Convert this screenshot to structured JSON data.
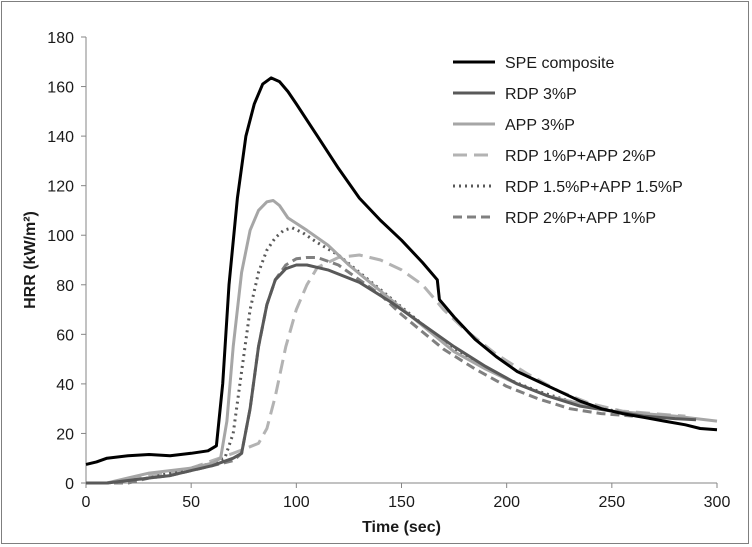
{
  "chart_data": {
    "type": "line",
    "title": "",
    "xlabel": "Time (sec)",
    "ylabel": "HRR (kW/m²)",
    "xlim": [
      0,
      300
    ],
    "ylim": [
      0,
      180
    ],
    "x_ticks": [
      0,
      50,
      100,
      150,
      200,
      250,
      300
    ],
    "y_ticks": [
      0,
      20,
      40,
      60,
      80,
      100,
      120,
      140,
      160,
      180
    ],
    "grid": false,
    "legend_position": "top-right",
    "series": [
      {
        "name": "SPE composite",
        "color": "#000000",
        "width": 3,
        "dash": "",
        "points": [
          [
            0,
            7.5
          ],
          [
            5,
            8.5
          ],
          [
            10,
            10
          ],
          [
            20,
            11
          ],
          [
            30,
            11.5
          ],
          [
            40,
            11
          ],
          [
            50,
            12
          ],
          [
            58,
            13
          ],
          [
            62,
            15
          ],
          [
            65,
            40
          ],
          [
            68,
            80
          ],
          [
            72,
            115
          ],
          [
            76,
            140
          ],
          [
            80,
            153
          ],
          [
            84,
            161
          ],
          [
            88,
            163.5
          ],
          [
            92,
            162
          ],
          [
            96,
            158
          ],
          [
            100,
            153
          ],
          [
            110,
            140
          ],
          [
            120,
            127
          ],
          [
            130,
            115
          ],
          [
            140,
            106
          ],
          [
            150,
            98
          ],
          [
            160,
            89
          ],
          [
            167,
            82
          ],
          [
            168,
            74
          ],
          [
            175,
            67
          ],
          [
            185,
            58
          ],
          [
            195,
            51
          ],
          [
            205,
            45
          ],
          [
            215,
            41
          ],
          [
            225,
            37
          ],
          [
            235,
            33
          ],
          [
            245,
            30
          ],
          [
            255,
            28
          ],
          [
            265,
            26.5
          ],
          [
            275,
            25
          ],
          [
            285,
            23.5
          ],
          [
            292,
            22
          ],
          [
            300,
            21.5
          ]
        ]
      },
      {
        "name": "RDP 3%P",
        "color": "#595959",
        "width": 3,
        "dash": "",
        "points": [
          [
            0,
            0
          ],
          [
            10,
            0
          ],
          [
            20,
            1
          ],
          [
            30,
            2
          ],
          [
            40,
            3
          ],
          [
            50,
            5
          ],
          [
            60,
            7
          ],
          [
            70,
            10
          ],
          [
            74,
            12
          ],
          [
            78,
            30
          ],
          [
            82,
            55
          ],
          [
            86,
            72
          ],
          [
            90,
            82
          ],
          [
            95,
            86.5
          ],
          [
            100,
            88
          ],
          [
            105,
            88
          ],
          [
            115,
            86
          ],
          [
            130,
            81
          ],
          [
            145,
            73
          ],
          [
            160,
            64
          ],
          [
            175,
            55
          ],
          [
            190,
            47
          ],
          [
            205,
            40
          ],
          [
            220,
            35
          ],
          [
            235,
            31
          ],
          [
            250,
            29
          ],
          [
            265,
            27
          ],
          [
            280,
            26
          ],
          [
            290,
            25.5
          ]
        ]
      },
      {
        "name": "APP 3%P",
        "color": "#a6a6a6",
        "width": 3,
        "dash": "",
        "points": [
          [
            0,
            0
          ],
          [
            10,
            0
          ],
          [
            20,
            2
          ],
          [
            30,
            4
          ],
          [
            40,
            5
          ],
          [
            50,
            6
          ],
          [
            60,
            8
          ],
          [
            64,
            10
          ],
          [
            67,
            25
          ],
          [
            70,
            55
          ],
          [
            74,
            85
          ],
          [
            78,
            102
          ],
          [
            82,
            110
          ],
          [
            86,
            113.5
          ],
          [
            89,
            114
          ],
          [
            92,
            112
          ],
          [
            96,
            107
          ],
          [
            105,
            102
          ],
          [
            115,
            96
          ],
          [
            125,
            88
          ],
          [
            135,
            81
          ],
          [
            145,
            74
          ],
          [
            155,
            67
          ],
          [
            165,
            60
          ],
          [
            175,
            53
          ],
          [
            190,
            46
          ],
          [
            205,
            40
          ],
          [
            220,
            35
          ],
          [
            235,
            32
          ],
          [
            250,
            29
          ],
          [
            265,
            28
          ],
          [
            280,
            27
          ],
          [
            290,
            26
          ],
          [
            300,
            25
          ]
        ]
      },
      {
        "name": "RDP 1%P+APP 2%P",
        "color": "#b3b3b3",
        "width": 3,
        "dash": "14,7",
        "points": [
          [
            0,
            0
          ],
          [
            10,
            0
          ],
          [
            20,
            1
          ],
          [
            30,
            3
          ],
          [
            40,
            4
          ],
          [
            50,
            6
          ],
          [
            60,
            9
          ],
          [
            70,
            12
          ],
          [
            82,
            16
          ],
          [
            86,
            22
          ],
          [
            90,
            35
          ],
          [
            95,
            55
          ],
          [
            100,
            70
          ],
          [
            105,
            80
          ],
          [
            110,
            87
          ],
          [
            120,
            91
          ],
          [
            130,
            92
          ],
          [
            140,
            90
          ],
          [
            150,
            86
          ],
          [
            160,
            80
          ],
          [
            170,
            70
          ],
          [
            180,
            62
          ],
          [
            195,
            52
          ],
          [
            210,
            44
          ],
          [
            225,
            37
          ],
          [
            240,
            32
          ],
          [
            255,
            29
          ],
          [
            270,
            28
          ],
          [
            285,
            27
          ]
        ]
      },
      {
        "name": "RDP 1.5%P+APP 1.5%P",
        "color": "#595959",
        "width": 3,
        "dash": "2,4",
        "points": [
          [
            0,
            0
          ],
          [
            10,
            0
          ],
          [
            20,
            1
          ],
          [
            30,
            2
          ],
          [
            40,
            4
          ],
          [
            50,
            6
          ],
          [
            60,
            8
          ],
          [
            66,
            10
          ],
          [
            70,
            20
          ],
          [
            74,
            45
          ],
          [
            78,
            70
          ],
          [
            82,
            85
          ],
          [
            86,
            94
          ],
          [
            90,
            99
          ],
          [
            94,
            102
          ],
          [
            98,
            103
          ],
          [
            103,
            101
          ],
          [
            110,
            97
          ],
          [
            120,
            92
          ],
          [
            130,
            85
          ],
          [
            140,
            78
          ],
          [
            150,
            71
          ],
          [
            160,
            64
          ],
          [
            170,
            57
          ],
          [
            185,
            49
          ],
          [
            200,
            42
          ],
          [
            215,
            37
          ],
          [
            230,
            33
          ],
          [
            245,
            30
          ],
          [
            260,
            28
          ],
          [
            275,
            27
          ],
          [
            290,
            26
          ]
        ]
      },
      {
        "name": "RDP 2%P+APP 1%P",
        "color": "#808080",
        "width": 3,
        "dash": "9,5",
        "points": [
          [
            0,
            0
          ],
          [
            10,
            0
          ],
          [
            20,
            0
          ],
          [
            30,
            2
          ],
          [
            40,
            3
          ],
          [
            50,
            5
          ],
          [
            60,
            7
          ],
          [
            70,
            9
          ],
          [
            74,
            12
          ],
          [
            78,
            30
          ],
          [
            82,
            55
          ],
          [
            86,
            72
          ],
          [
            90,
            82
          ],
          [
            95,
            88
          ],
          [
            100,
            90.5
          ],
          [
            105,
            91
          ],
          [
            110,
            91
          ],
          [
            120,
            88
          ],
          [
            130,
            82
          ],
          [
            140,
            76
          ],
          [
            150,
            68
          ],
          [
            160,
            61
          ],
          [
            170,
            54
          ],
          [
            185,
            46
          ],
          [
            200,
            39
          ],
          [
            215,
            34
          ],
          [
            230,
            30
          ],
          [
            245,
            28
          ],
          [
            260,
            27
          ]
        ]
      }
    ]
  }
}
